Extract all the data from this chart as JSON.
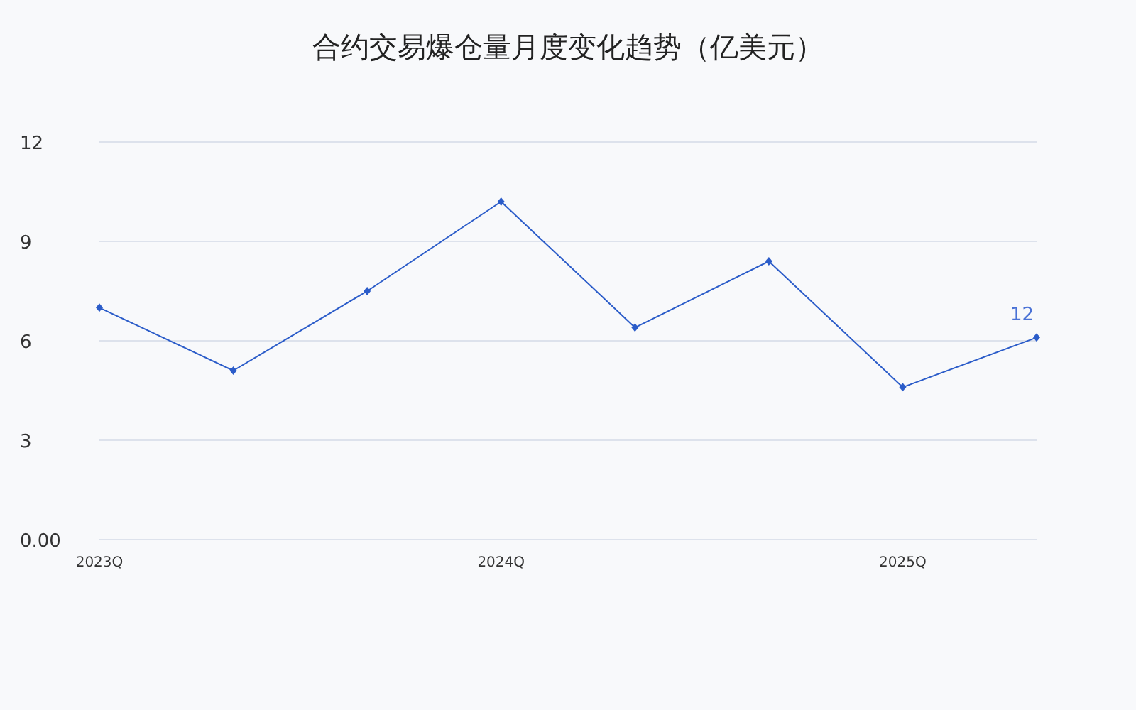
{
  "chart_data": {
    "type": "line",
    "title": "合约交易爆仓量月度变化趋势（亿美元）",
    "categories": [
      "2023Q",
      null,
      null,
      "2024Q",
      null,
      null,
      "2025Q",
      null
    ],
    "series": [
      {
        "color": "#2b5cc9",
        "values": [
          7.0,
          5.1,
          7.5,
          10.2,
          6.4,
          8.4,
          4.6,
          6.1
        ]
      }
    ],
    "ylim": [
      0,
      12
    ],
    "yticks": [
      {
        "value": 0,
        "label": "0.00"
      },
      3,
      6,
      9,
      12
    ],
    "grid": "y",
    "marker": "diamond",
    "line_style": "solid",
    "annotations": [
      {
        "text": "12",
        "y": 6.1
      }
    ]
  }
}
